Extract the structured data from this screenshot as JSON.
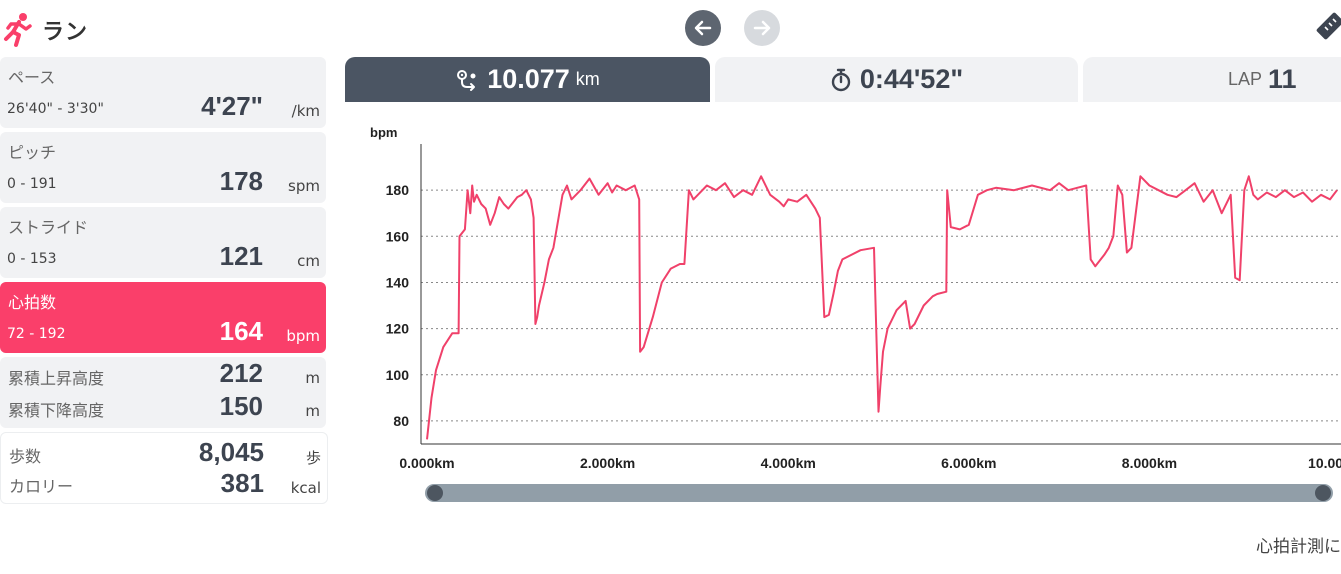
{
  "header": {
    "title": "ラン",
    "activity_icon": "runner-icon",
    "prev_icon": "arrow-left-icon",
    "next_icon": "arrow-right-icon",
    "corner_icon": "ruler-icon"
  },
  "stats": {
    "pace": {
      "label": "ペース",
      "range": "26'40\" - 3'30\"",
      "value": "4'27\"",
      "unit": "/km"
    },
    "cadence": {
      "label": "ピッチ",
      "range": "0 - 191",
      "value": "178",
      "unit": "spm"
    },
    "stride": {
      "label": "ストライド",
      "range": "0 - 153",
      "value": "121",
      "unit": "cm"
    },
    "heart_rate": {
      "label": "心拍数",
      "range": "72 - 192",
      "value": "164",
      "unit": "bpm"
    },
    "ascent": {
      "label": "累積上昇高度",
      "value": "212",
      "unit": "m"
    },
    "descent": {
      "label": "累積下降高度",
      "value": "150",
      "unit": "m"
    },
    "steps": {
      "label": "歩数",
      "value": "8,045",
      "unit": "歩"
    },
    "calories": {
      "label": "カロリー",
      "value": "381",
      "unit": "kcal"
    }
  },
  "tabs": {
    "distance": {
      "value": "10.077",
      "unit": "km",
      "icon": "route-icon"
    },
    "time": {
      "value": "0:44'52\"",
      "icon": "stopwatch-icon"
    },
    "lap": {
      "prefix": "LAP",
      "value": "11"
    }
  },
  "colors": {
    "accent": "#fa3f6a",
    "tab_active": "#4b5563",
    "card_bg": "#f1f2f4",
    "line": "#f0416a"
  },
  "chart_data": {
    "type": "line",
    "ylabel": "bpm",
    "x_unit": "km",
    "x_ticks": [
      "0.000km",
      "2.000km",
      "4.000km",
      "6.000km",
      "8.000km",
      "10.00"
    ],
    "y_ticks": [
      80,
      100,
      120,
      140,
      160,
      180
    ],
    "ylim": [
      70,
      200
    ],
    "xlim": [
      0,
      10.077
    ],
    "grid": "horizontal-dotted",
    "series": [
      {
        "x": [
          0.0,
          0.05,
          0.1,
          0.18,
          0.28,
          0.35,
          0.36,
          0.42,
          0.45,
          0.48,
          0.5,
          0.52,
          0.55,
          0.6,
          0.65,
          0.7,
          0.75,
          0.8,
          0.85,
          0.9,
          1.0,
          1.05,
          1.1,
          1.15,
          1.18,
          1.2,
          1.22,
          1.24,
          1.3,
          1.35,
          1.4,
          1.5,
          1.55,
          1.6,
          1.7,
          1.8,
          1.9,
          2.0,
          2.05,
          2.1,
          2.2,
          2.3,
          2.35,
          2.36,
          2.4,
          2.5,
          2.6,
          2.7,
          2.8,
          2.85,
          2.9,
          2.95,
          3.0,
          3.1,
          3.2,
          3.3,
          3.4,
          3.5,
          3.6,
          3.7,
          3.8,
          3.9,
          3.95,
          4.0,
          4.1,
          4.2,
          4.3,
          4.35,
          4.4,
          4.45,
          4.5,
          4.55,
          4.6,
          4.8,
          4.95,
          5.0,
          5.02,
          5.05,
          5.1,
          5.2,
          5.3,
          5.35,
          5.4,
          5.5,
          5.6,
          5.65,
          5.75,
          5.76,
          5.8,
          5.9,
          6.0,
          6.1,
          6.2,
          6.3,
          6.5,
          6.7,
          6.9,
          7.0,
          7.1,
          7.2,
          7.3,
          7.35,
          7.4,
          7.5,
          7.55,
          7.6,
          7.65,
          7.7,
          7.75,
          7.8,
          7.9,
          8.0,
          8.1,
          8.2,
          8.3,
          8.4,
          8.5,
          8.6,
          8.7,
          8.8,
          8.9,
          8.95,
          9.0,
          9.05,
          9.1,
          9.15,
          9.2,
          9.3,
          9.4,
          9.5,
          9.6,
          9.7,
          9.8,
          9.9,
          10.0,
          10.077
        ],
        "y": [
          72,
          90,
          102,
          112,
          118,
          118,
          160,
          163,
          180,
          170,
          182,
          175,
          178,
          174,
          172,
          165,
          170,
          177,
          174,
          172,
          177,
          178,
          180,
          176,
          168,
          122,
          125,
          130,
          140,
          150,
          155,
          178,
          182,
          176,
          180,
          185,
          178,
          183,
          179,
          182,
          180,
          182,
          176,
          110,
          112,
          125,
          140,
          146,
          148,
          148,
          180,
          176,
          178,
          182,
          180,
          183,
          177,
          180,
          178,
          186,
          178,
          175,
          173,
          176,
          175,
          178,
          172,
          168,
          125,
          126,
          135,
          145,
          150,
          154,
          155,
          84,
          95,
          110,
          120,
          128,
          132,
          120,
          122,
          130,
          134,
          135,
          136,
          180,
          164,
          163,
          165,
          178,
          180,
          181,
          180,
          182,
          180,
          183,
          180,
          181,
          182,
          150,
          147,
          152,
          155,
          160,
          182,
          178,
          153,
          155,
          186,
          182,
          180,
          178,
          177,
          180,
          183,
          175,
          180,
          170,
          178,
          142,
          141,
          180,
          186,
          178,
          176,
          179,
          177,
          180,
          177,
          179,
          175,
          178,
          176,
          180
        ]
      }
    ]
  },
  "slider": {
    "start": 0.0,
    "end": 1.0
  },
  "footer_note": "心拍計測に"
}
